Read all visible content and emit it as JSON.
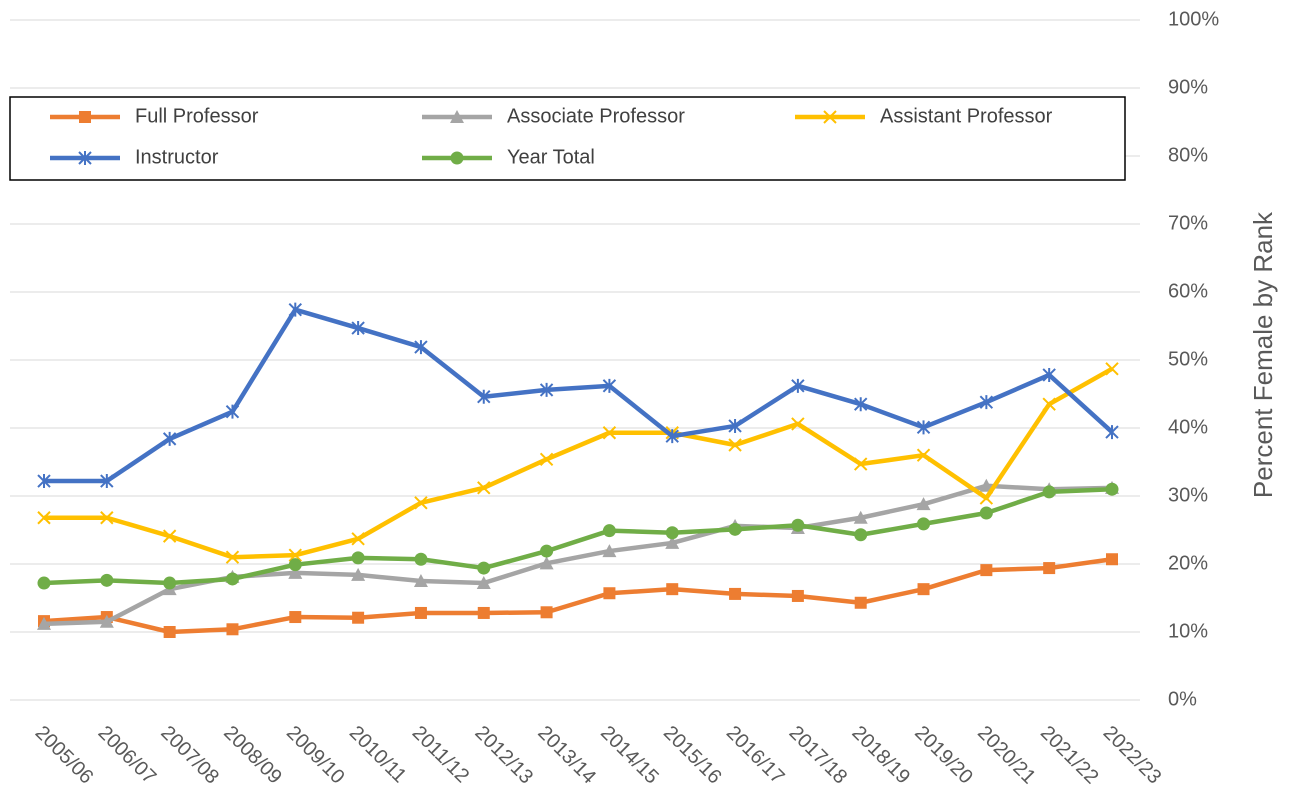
{
  "chart_data": {
    "type": "line",
    "y_label": "Percent Female by Rank",
    "categories": [
      "2005/06",
      "2006/07",
      "2007/08",
      "2008/09",
      "2009/10",
      "2010/11",
      "2011/12",
      "2012/13",
      "2013/14",
      "2014/15",
      "2015/16",
      "2016/17",
      "2017/18",
      "2018/19",
      "2019/20",
      "2020/21",
      "2021/22",
      "2022/23"
    ],
    "series": [
      {
        "name": "Full Professor",
        "color": "#ED7D31",
        "marker": "square",
        "values": [
          11.6,
          12.2,
          10,
          10.4,
          12.2,
          12.1,
          12.8,
          12.8,
          12.9,
          15.7,
          16.3,
          15.6,
          15.3,
          14.3,
          16.3,
          19.1,
          19.4,
          20.7
        ]
      },
      {
        "name": "Associate Professor",
        "color": "#A5A5A5",
        "marker": "triangle",
        "values": [
          11.2,
          11.5,
          16.3,
          18.1,
          18.7,
          18.4,
          17.5,
          17.2,
          20.1,
          21.9,
          23.1,
          25.6,
          25.3,
          26.8,
          28.8,
          31.5,
          31,
          31.2
        ]
      },
      {
        "name": "Assistant Professor",
        "color": "#FFC000",
        "marker": "x",
        "values": [
          26.8,
          26.8,
          24.1,
          21,
          21.3,
          23.7,
          29,
          31.2,
          35.4,
          39.3,
          39.3,
          37.5,
          40.6,
          34.7,
          36,
          29.7,
          43.5,
          48.7
        ]
      },
      {
        "name": "Instructor",
        "color": "#4472C4",
        "marker": "asterisk",
        "values": [
          32.2,
          32.2,
          38.4,
          42.4,
          57.4,
          54.7,
          51.9,
          44.6,
          45.6,
          46.2,
          38.8,
          40.3,
          46.2,
          43.5,
          40.1,
          43.8,
          47.8,
          39.4
        ]
      },
      {
        "name": "Year Total",
        "color": "#70AD47",
        "marker": "circle",
        "values": [
          17.2,
          17.6,
          17.2,
          17.8,
          19.9,
          20.9,
          20.7,
          19.4,
          21.9,
          24.9,
          24.6,
          25.1,
          25.7,
          24.3,
          25.9,
          27.5,
          30.6,
          31
        ]
      }
    ],
    "ylim": [
      0,
      100
    ],
    "yticks": [
      {
        "value": 0,
        "label": "0%"
      },
      {
        "value": 10,
        "label": "10%"
      },
      {
        "value": 20,
        "label": "20%"
      },
      {
        "value": 30,
        "label": "30%"
      },
      {
        "value": 40,
        "label": "40%"
      },
      {
        "value": 50,
        "label": "50%"
      },
      {
        "value": 60,
        "label": "60%"
      },
      {
        "value": 70,
        "label": "70%"
      },
      {
        "value": 80,
        "label": "80%"
      },
      {
        "value": 90,
        "label": "90%"
      },
      {
        "value": 100,
        "label": "100%"
      }
    ],
    "y_axis_side": "right",
    "grid": true,
    "legend": "top"
  }
}
